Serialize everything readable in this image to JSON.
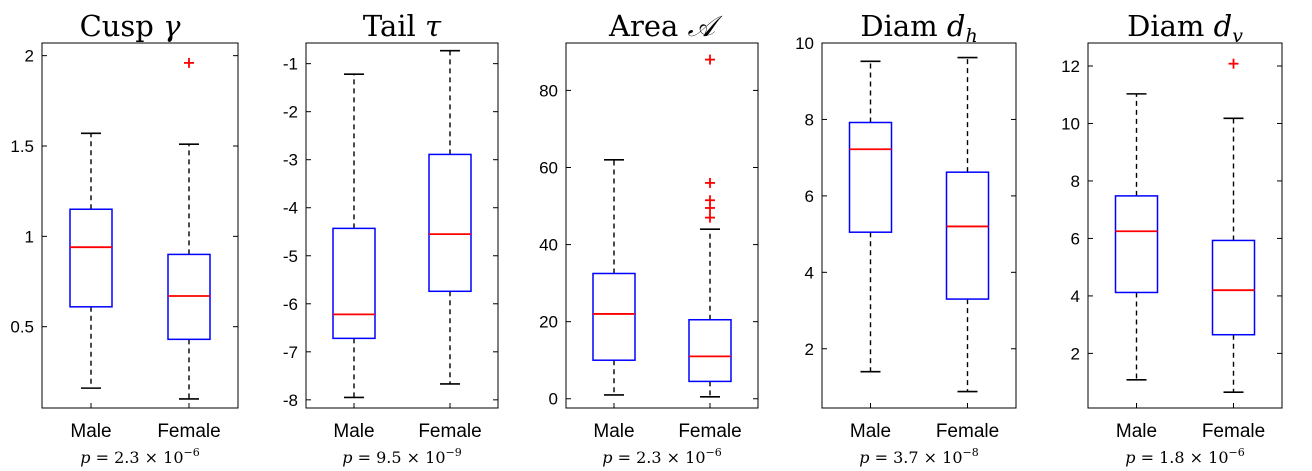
{
  "chart_data": [
    {
      "type": "boxplot",
      "title": {
        "prefix": "Cusp",
        "symbol": "γ",
        "subscript": ""
      },
      "categories": [
        "Male",
        "Female"
      ],
      "ylim": [
        0.05,
        2.07
      ],
      "yticks": [
        0.5,
        1,
        1.5,
        2
      ],
      "yticklabels": [
        "0.5",
        "1",
        "1.5",
        "2"
      ],
      "boxes": [
        {
          "category": "Male",
          "min": 0.16,
          "q1": 0.61,
          "median": 0.94,
          "q3": 1.15,
          "max": 1.57,
          "outliers": []
        },
        {
          "category": "Female",
          "min": 0.1,
          "q1": 0.43,
          "median": 0.67,
          "q3": 0.9,
          "max": 1.51,
          "outliers": [
            1.96
          ]
        }
      ],
      "p_value": {
        "mantissa": "2.3",
        "exponent": "−6"
      }
    },
    {
      "type": "boxplot",
      "title": {
        "prefix": "Tail",
        "symbol": "τ",
        "subscript": ""
      },
      "categories": [
        "Male",
        "Female"
      ],
      "ylim": [
        -8.17,
        -0.57
      ],
      "yticks": [
        -8,
        -7,
        -6,
        -5,
        -4,
        -3,
        -2,
        -1
      ],
      "yticklabels": [
        "-8",
        "-7",
        "-6",
        "-5",
        "-4",
        "-3",
        "-2",
        "-1"
      ],
      "boxes": [
        {
          "category": "Male",
          "min": -7.95,
          "q1": -6.72,
          "median": -6.22,
          "q3": -4.43,
          "max": -1.22,
          "outliers": []
        },
        {
          "category": "Female",
          "min": -7.67,
          "q1": -5.74,
          "median": -4.55,
          "q3": -2.89,
          "max": -0.73,
          "outliers": []
        }
      ],
      "p_value": {
        "mantissa": "9.5",
        "exponent": "−9"
      }
    },
    {
      "type": "boxplot",
      "title": {
        "prefix": "Area",
        "symbol": "𝒜",
        "subscript": ""
      },
      "categories": [
        "Male",
        "Female"
      ],
      "ylim": [
        -2.4,
        92.3
      ],
      "yticks": [
        0,
        20,
        40,
        60,
        80
      ],
      "yticklabels": [
        "0",
        "20",
        "40",
        "60",
        "80"
      ],
      "boxes": [
        {
          "category": "Male",
          "min": 1,
          "q1": 10,
          "median": 22,
          "q3": 32.5,
          "max": 62,
          "outliers": []
        },
        {
          "category": "Female",
          "min": 0.5,
          "q1": 4.5,
          "median": 11,
          "q3": 20.5,
          "max": 44,
          "outliers": [
            47,
            49.5,
            51.5,
            56,
            88
          ]
        }
      ],
      "p_value": {
        "mantissa": "2.3",
        "exponent": "−6"
      }
    },
    {
      "type": "boxplot",
      "title": {
        "prefix": "Diam",
        "symbol": "d",
        "subscript": "h"
      },
      "categories": [
        "Male",
        "Female"
      ],
      "ylim": [
        0.45,
        10.0
      ],
      "yticks": [
        2,
        4,
        6,
        8,
        10
      ],
      "yticklabels": [
        "2",
        "4",
        "6",
        "8",
        "10"
      ],
      "boxes": [
        {
          "category": "Male",
          "min": 1.4,
          "q1": 5.05,
          "median": 7.22,
          "q3": 7.92,
          "max": 9.52,
          "outliers": []
        },
        {
          "category": "Female",
          "min": 0.88,
          "q1": 3.3,
          "median": 5.2,
          "q3": 6.62,
          "max": 9.62,
          "outliers": []
        }
      ],
      "p_value": {
        "mantissa": "3.7",
        "exponent": "−8"
      }
    },
    {
      "type": "boxplot",
      "title": {
        "prefix": "Diam",
        "symbol": "d",
        "subscript": "v"
      },
      "categories": [
        "Male",
        "Female"
      ],
      "ylim": [
        0.1,
        12.8
      ],
      "yticks": [
        2,
        4,
        6,
        8,
        10,
        12
      ],
      "yticklabels": [
        "2",
        "4",
        "6",
        "8",
        "10",
        "12"
      ],
      "boxes": [
        {
          "category": "Male",
          "min": 1.08,
          "q1": 4.12,
          "median": 6.25,
          "q3": 7.48,
          "max": 11.03,
          "outliers": []
        },
        {
          "category": "Female",
          "min": 0.65,
          "q1": 2.65,
          "median": 4.2,
          "q3": 5.93,
          "max": 10.18,
          "outliers": [
            12.08
          ]
        }
      ],
      "p_value": {
        "mantissa": "1.8",
        "exponent": "−6"
      }
    }
  ],
  "style": {
    "box_color": "#0000ff",
    "median_color": "#ff0000",
    "outlier_color": "#ff0000",
    "whisker_color": "#000000",
    "axes_color": "#000000"
  },
  "labels": {
    "p_prefix": "p",
    "equals": " = ",
    "times": " × ",
    "base": "10"
  }
}
